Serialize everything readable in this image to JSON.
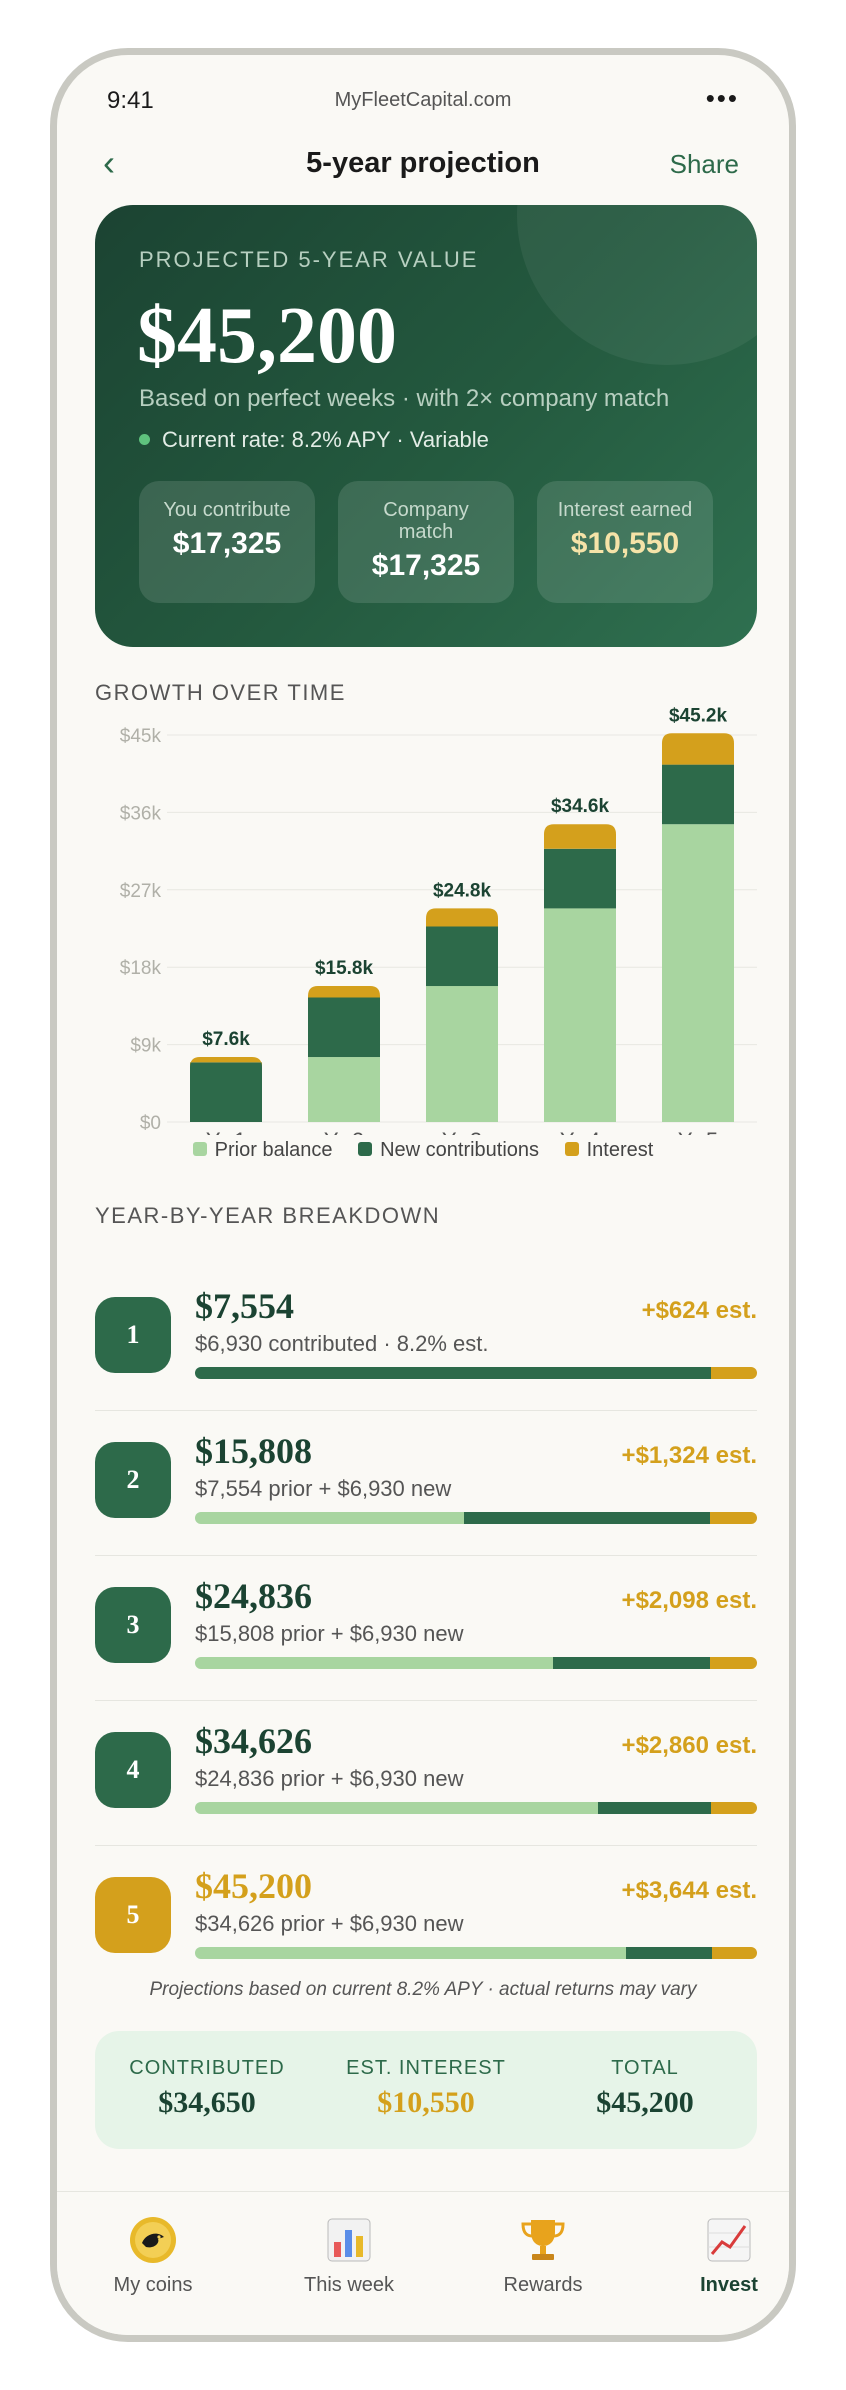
{
  "status": {
    "time": "9:41",
    "site": "MyFleetCapital.com",
    "menu": "•••"
  },
  "nav": {
    "back": "‹",
    "title": "5-year projection",
    "share": "Share"
  },
  "hero": {
    "label": "PROJECTED 5-YEAR VALUE",
    "value": "$45,200",
    "basis": "Based on perfect weeks · with 2× company match",
    "rate": "Current rate: 8.2% APY · Variable",
    "tiles": [
      {
        "label": "You contribute",
        "value": "$17,325"
      },
      {
        "label": "Company match",
        "value": "$17,325"
      },
      {
        "label": "Interest earned",
        "value": "$10,550"
      }
    ]
  },
  "growth_label": "GROWTH OVER TIME",
  "chart_data": {
    "type": "bar",
    "stacked": true,
    "categories": [
      "Yr 1",
      "Yr 2",
      "Yr 3",
      "Yr 4",
      "Yr 5"
    ],
    "y_tick_labels": [
      "$0",
      "$9k",
      "$18k",
      "$27k",
      "$36k",
      "$45k"
    ],
    "ylim": [
      0,
      45000
    ],
    "grid": true,
    "legend_position": "bottom",
    "total_labels": [
      "$7.6k",
      "$15.8k",
      "$24.8k",
      "$34.6k",
      "$45.2k"
    ],
    "series": [
      {
        "name": "Prior balance",
        "color": "#a8d5a0",
        "values": [
          0,
          7554,
          15808,
          24836,
          34626
        ]
      },
      {
        "name": "New contributions",
        "color": "#2d6a4a",
        "values": [
          6930,
          6930,
          6930,
          6930,
          6930
        ]
      },
      {
        "name": "Interest",
        "color": "#d4a01c",
        "values": [
          624,
          1324,
          2098,
          2860,
          3644
        ]
      }
    ]
  },
  "breakdown_label": "YEAR-BY-YEAR BREAKDOWN",
  "rows": [
    {
      "year": "1",
      "amount": "$7,554",
      "detail": "$6,930 contributed · 8.2% est.",
      "interest": "+$624 est.",
      "prior": 0,
      "new": 6930,
      "int": 624
    },
    {
      "year": "2",
      "amount": "$15,808",
      "detail": "$7,554 prior + $6,930 new",
      "interest": "+$1,324 est.",
      "prior": 7554,
      "new": 6930,
      "int": 1324
    },
    {
      "year": "3",
      "amount": "$24,836",
      "detail": "$15,808 prior + $6,930 new",
      "interest": "+$2,098 est.",
      "prior": 15808,
      "new": 6930,
      "int": 2098
    },
    {
      "year": "4",
      "amount": "$34,626",
      "detail": "$24,836 prior + $6,930 new",
      "interest": "+$2,860 est.",
      "prior": 24836,
      "new": 6930,
      "int": 2860
    },
    {
      "year": "5",
      "amount": "$45,200",
      "detail": "$34,626 prior + $6,930 new",
      "interest": "+$3,644 est.",
      "prior": 34626,
      "new": 6930,
      "int": 3644
    }
  ],
  "footnote": "Projections based on current 8.2% APY · actual returns may vary",
  "summary": [
    {
      "label": "CONTRIBUTED",
      "value": "$34,650"
    },
    {
      "label": "EST. INTEREST",
      "value": "$10,550"
    },
    {
      "label": "TOTAL",
      "value": "$45,200"
    }
  ],
  "tabs": [
    {
      "label": "My coins",
      "icon": "coin-icon"
    },
    {
      "label": "This week",
      "icon": "bar-chart-icon"
    },
    {
      "label": "Rewards",
      "icon": "trophy-icon"
    },
    {
      "label": "Invest",
      "icon": "trend-chart-icon"
    }
  ]
}
